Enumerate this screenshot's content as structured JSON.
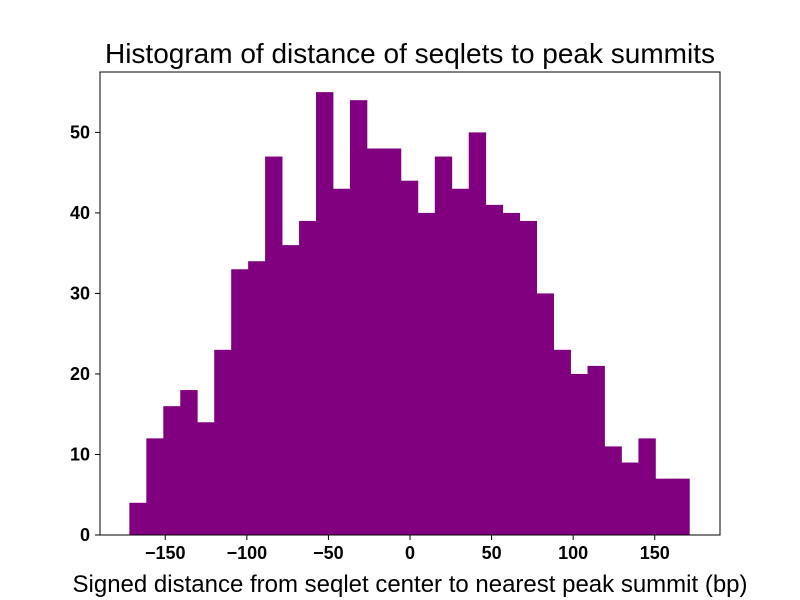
{
  "chart_data": {
    "type": "bar",
    "title": "Histogram of distance of seqlets to peak summits",
    "xlabel": "Signed distance from seqlet center to nearest peak summit (bp)",
    "ylabel": "",
    "xlim": [
      -190,
      190
    ],
    "ylim": [
      0,
      57.5
    ],
    "bin_edges": [
      -172,
      -161.6,
      -151.2,
      -140.8,
      -130.4,
      -120,
      -109.6,
      -99.2,
      -88.8,
      -78.4,
      -68,
      -57.6,
      -47.2,
      -36.8,
      -26.4,
      -16,
      -5.6,
      4.8,
      15.2,
      25.6,
      36,
      46.4,
      56.8,
      67.2,
      77.6,
      88,
      98.4,
      108.8,
      119.2,
      129.6,
      140,
      150.4,
      160.8,
      171.2
    ],
    "values": [
      4,
      12,
      16,
      18,
      14,
      23,
      33,
      34,
      47,
      36,
      39,
      55,
      43,
      54,
      48,
      48,
      44,
      40,
      47,
      43,
      50,
      41,
      40,
      39,
      30,
      23,
      20,
      21,
      11,
      9,
      12,
      7,
      7
    ],
    "x_ticks": [
      -150,
      -100,
      -50,
      0,
      50,
      100,
      150
    ],
    "x_tick_labels": [
      "−150",
      "−100",
      "−50",
      "0",
      "50",
      "100",
      "150"
    ],
    "y_ticks": [
      0,
      10,
      20,
      30,
      40,
      50
    ],
    "y_tick_labels": [
      "0",
      "10",
      "20",
      "30",
      "40",
      "50"
    ],
    "grid": false,
    "bar_color": "#800080"
  }
}
